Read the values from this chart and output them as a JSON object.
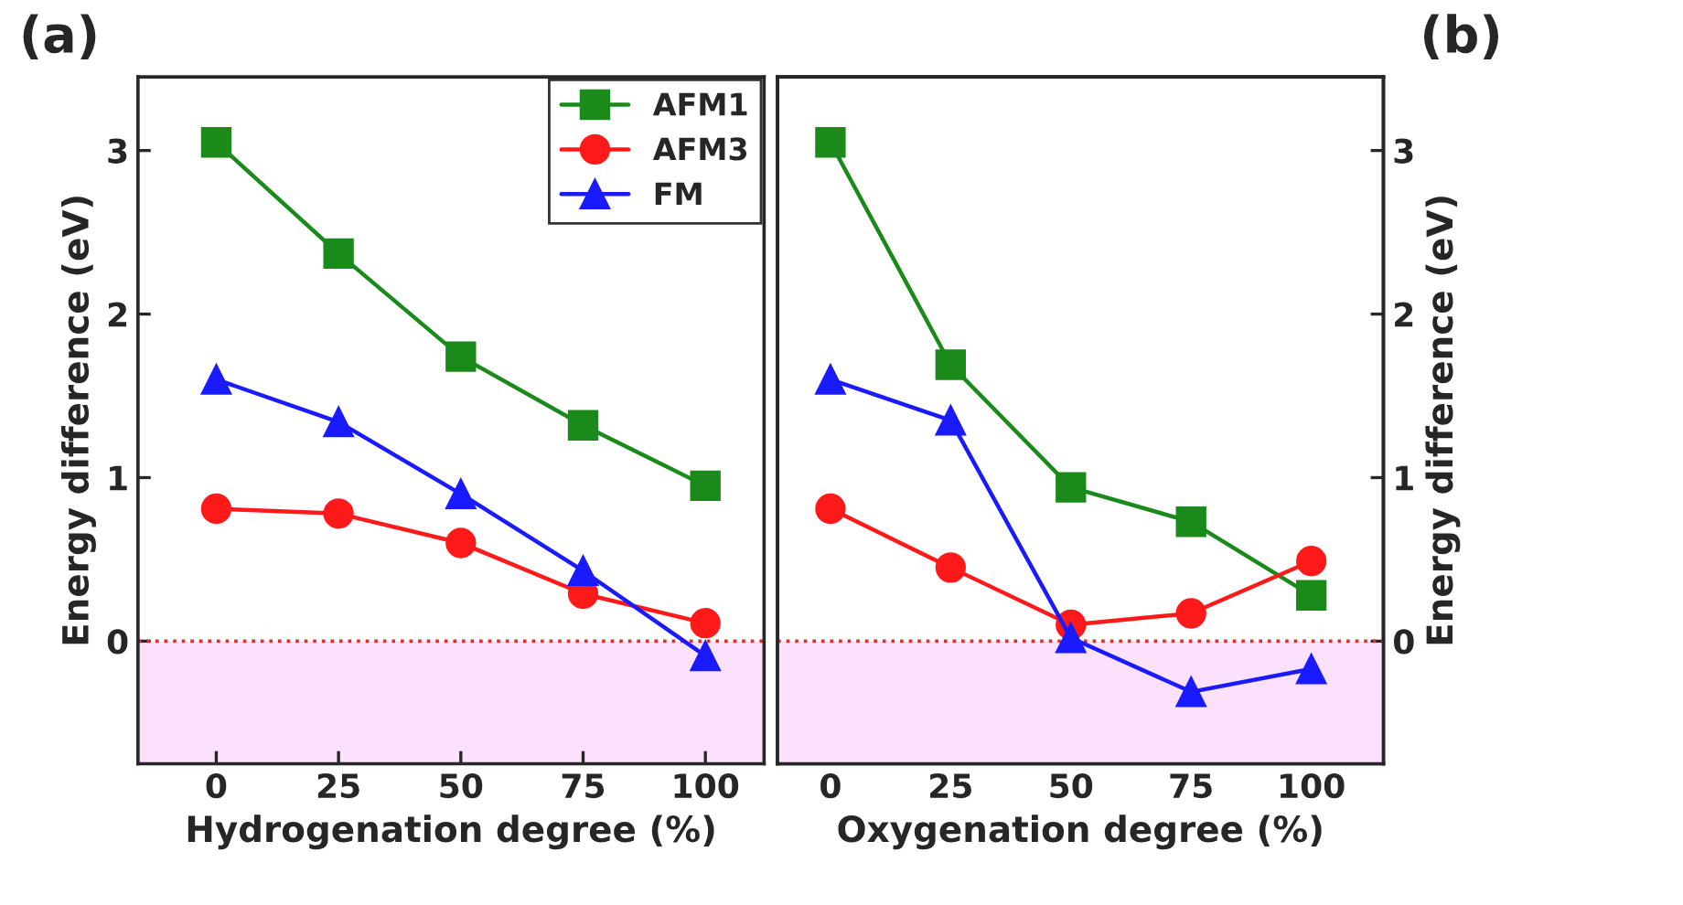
{
  "chart_data": [
    {
      "type": "line",
      "annotations": [
        "(a)"
      ],
      "xlabel": "Hydrogenation degree (%)",
      "ylabel": "Energy difference (eV)",
      "x": [
        0,
        25,
        50,
        75,
        100
      ],
      "xlim": [
        -16,
        112
      ],
      "xticks": [
        0,
        25,
        50,
        75,
        100
      ],
      "ylim": [
        -0.75,
        3.45
      ],
      "yticks": [
        0,
        1,
        2,
        3
      ],
      "legend": "top right",
      "grid": false,
      "line_style": "solid",
      "ref_lines": [
        {
          "axis": "y",
          "value": 0,
          "color": "#e03020",
          "line_style": "dotted"
        }
      ],
      "bands": [
        {
          "axis": "y",
          "from": -0.75,
          "to": 0,
          "color": "#fbe1fb"
        }
      ],
      "series": [
        {
          "name": "AFM1",
          "color": "#1a8a1a",
          "marker": "square",
          "values": [
            3.05,
            2.37,
            1.74,
            1.32,
            0.95
          ]
        },
        {
          "name": "AFM3",
          "color": "#ff1a1a",
          "marker": "circle",
          "values": [
            0.81,
            0.78,
            0.6,
            0.29,
            0.11
          ]
        },
        {
          "name": "FM",
          "color": "#1a1aff",
          "marker": "triangle",
          "values": [
            1.6,
            1.34,
            0.9,
            0.43,
            -0.09
          ]
        }
      ]
    },
    {
      "type": "line",
      "annotations": [
        "(b)"
      ],
      "xlabel": "Oxygenation degree (%)",
      "y2label": "Energy difference (eV)",
      "x": [
        0,
        25,
        50,
        75,
        100
      ],
      "xlim": [
        -11,
        115
      ],
      "xticks": [
        0,
        25,
        50,
        75,
        100
      ],
      "y2lim": [
        -0.75,
        3.45
      ],
      "y2ticks": [
        0,
        1,
        2,
        3
      ],
      "grid": false,
      "line_style": "solid",
      "ref_lines": [
        {
          "axis": "y2",
          "value": 0,
          "color": "#e03020",
          "line_style": "dotted"
        }
      ],
      "bands": [
        {
          "axis": "y2",
          "from": -0.75,
          "to": 0,
          "color": "#fbe1fb"
        }
      ],
      "series": [
        {
          "axis": "y2",
          "color": "#1a8a1a",
          "marker": "square",
          "values": [
            3.05,
            1.69,
            0.94,
            0.73,
            0.28
          ]
        },
        {
          "axis": "y2",
          "color": "#ff1a1a",
          "marker": "circle",
          "values": [
            0.81,
            0.45,
            0.1,
            0.17,
            0.49
          ]
        },
        {
          "axis": "y2",
          "color": "#1a1aff",
          "marker": "triangle",
          "values": [
            1.6,
            1.35,
            0.02,
            -0.31,
            -0.17
          ]
        }
      ]
    }
  ]
}
